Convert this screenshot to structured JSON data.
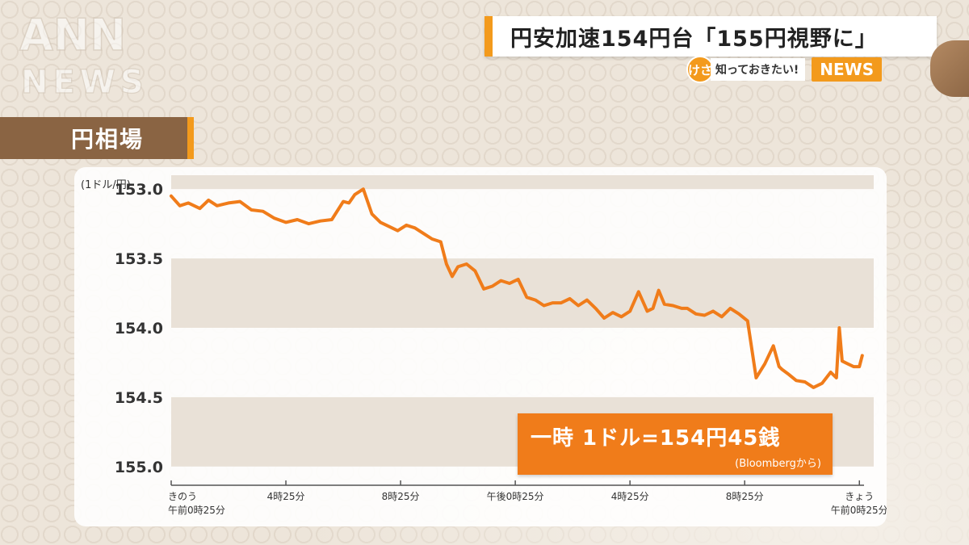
{
  "header": {
    "headline": "円安加速154円台「155円視野に」",
    "badge": "けさ",
    "subtitle": "知っておきたい!",
    "news_label": "NEWS",
    "watermark": "ANN NEWS"
  },
  "section": {
    "label": "円相場"
  },
  "annotation": {
    "main": "一時 1ドル=154円45銭",
    "source": "(Bloombergから)"
  },
  "colors": {
    "accent": "#f39a1c",
    "line": "#f07c1a",
    "band": "#e9e1d7",
    "brown": "#8a6443"
  },
  "chart_data": {
    "type": "line",
    "ylabel": "(1ドル/円)",
    "ylim": [
      152.9,
      155.1
    ],
    "y_inverted": true,
    "y_ticks": [
      "153.0",
      "153.5",
      "154.0",
      "154.5",
      "155.0"
    ],
    "y_tick_values": [
      153.0,
      153.5,
      154.0,
      154.5,
      155.0
    ],
    "bands": [
      [
        152.9,
        153.0
      ],
      [
        153.5,
        154.0
      ],
      [
        154.5,
        155.0
      ]
    ],
    "x_tick_labels": [
      {
        "t": 0,
        "lines": [
          "きのう",
          "午前0時25分"
        ]
      },
      {
        "t": 4,
        "lines": [
          "4時25分"
        ]
      },
      {
        "t": 8,
        "lines": [
          "8時25分"
        ]
      },
      {
        "t": 12,
        "lines": [
          "午後0時25分"
        ]
      },
      {
        "t": 16,
        "lines": [
          "4時25分"
        ]
      },
      {
        "t": 20,
        "lines": [
          "8時25分"
        ]
      },
      {
        "t": 24,
        "lines": [
          "きょう",
          "午前0時25分"
        ]
      }
    ],
    "xlim": [
      0,
      24.5
    ],
    "series": [
      {
        "x": [
          0.0,
          0.3,
          0.6,
          1.0,
          1.3,
          1.6,
          2.0,
          2.4,
          2.8,
          3.2,
          3.6,
          4.0,
          4.4,
          4.8,
          5.2,
          5.6,
          6.0,
          6.2,
          6.4,
          6.7,
          7.0,
          7.3,
          7.6,
          7.9,
          8.2,
          8.5,
          8.8,
          9.1,
          9.4,
          9.6,
          9.8,
          10.0,
          10.3,
          10.6,
          10.9,
          11.2,
          11.5,
          11.8,
          12.1,
          12.4,
          12.7,
          13.0,
          13.3,
          13.6,
          13.9,
          14.2,
          14.5,
          14.8,
          15.1,
          15.4,
          15.7,
          16.0,
          16.3,
          16.6,
          16.8,
          17.0,
          17.2,
          17.5,
          17.8,
          18.0,
          18.3,
          18.6,
          18.9,
          19.2,
          19.5,
          19.8,
          20.1,
          20.4,
          20.7,
          21.0,
          21.2,
          21.3,
          21.5,
          21.8,
          22.1,
          22.4,
          22.7,
          23.0,
          23.2,
          23.3,
          23.4,
          23.6,
          23.8,
          24.0,
          24.1
        ],
        "y": [
          153.05,
          153.12,
          153.1,
          153.14,
          153.08,
          153.12,
          153.1,
          153.09,
          153.15,
          153.16,
          153.21,
          153.24,
          153.22,
          153.25,
          153.23,
          153.22,
          153.09,
          153.1,
          153.04,
          153.0,
          153.18,
          153.24,
          153.27,
          153.3,
          153.26,
          153.28,
          153.32,
          153.36,
          153.38,
          153.54,
          153.63,
          153.56,
          153.54,
          153.59,
          153.72,
          153.7,
          153.66,
          153.68,
          153.65,
          153.78,
          153.8,
          153.84,
          153.82,
          153.82,
          153.79,
          153.84,
          153.8,
          153.86,
          153.93,
          153.89,
          153.92,
          153.88,
          153.74,
          153.88,
          153.86,
          153.73,
          153.83,
          153.84,
          153.86,
          153.86,
          153.9,
          153.91,
          153.88,
          153.92,
          153.86,
          153.9,
          153.95,
          154.36,
          154.26,
          154.13,
          154.28,
          154.3,
          154.33,
          154.38,
          154.39,
          154.43,
          154.4,
          154.32,
          154.36,
          154.0,
          154.24,
          154.26,
          154.28,
          154.28,
          154.2
        ]
      }
    ]
  }
}
